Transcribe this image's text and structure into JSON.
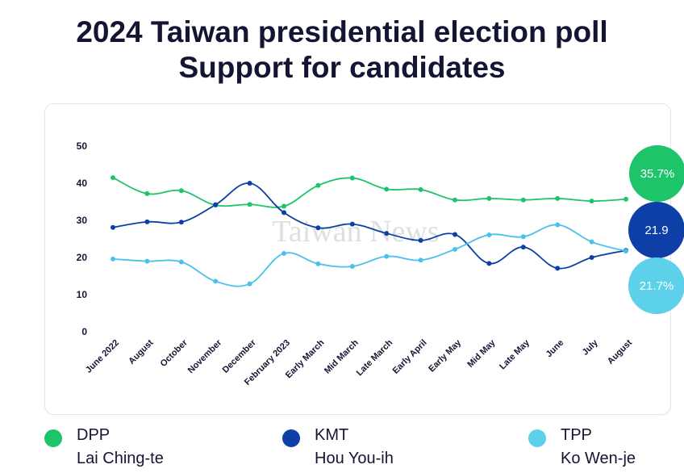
{
  "title_line1": "2024 Taiwan presidential election poll",
  "title_line2": "Support for candidates",
  "watermark": "Taiwan News",
  "colors": {
    "dpp": "#1ec46a",
    "kmt": "#0d3fa6",
    "tpp": "#5dd0ea",
    "tpp_line": "#49c2eb"
  },
  "chart_data": {
    "type": "line",
    "categories": [
      "June 2022",
      "August",
      "October",
      "November",
      "December",
      "February 2023",
      "Early March",
      "Mid March",
      "Late March",
      "Early April",
      "Early May",
      "Mid May",
      "Late May",
      "June",
      "July",
      "August"
    ],
    "ylim": [
      0,
      50
    ],
    "yticks": [
      "0",
      "10",
      "20",
      "30",
      "40",
      "50"
    ],
    "series": [
      {
        "name": "DPP",
        "values": [
          41.5,
          37.2,
          38.0,
          34.1,
          34.3,
          33.8,
          39.4,
          41.4,
          38.4,
          38.3,
          35.5,
          35.9,
          35.5,
          35.9,
          35.2,
          35.7
        ]
      },
      {
        "name": "KMT",
        "values": [
          28.1,
          29.6,
          29.5,
          34.2,
          40.0,
          32.1,
          28.0,
          29.0,
          26.5,
          24.6,
          26.2,
          18.4,
          22.8,
          17.1,
          20.0,
          21.9
        ]
      },
      {
        "name": "TPP",
        "values": [
          19.6,
          19.0,
          18.8,
          13.6,
          12.9,
          21.1,
          18.3,
          17.6,
          20.3,
          19.3,
          22.2,
          26.1,
          25.6,
          28.8,
          24.2,
          21.7
        ]
      }
    ]
  },
  "bubbles": {
    "dpp": "35.7%",
    "kmt": "21.9",
    "tpp": "21.7%"
  },
  "legend": [
    {
      "party": "DPP",
      "candidate": "Lai Ching-te"
    },
    {
      "party": "KMT",
      "candidate": "Hou You-ih"
    },
    {
      "party": "TPP",
      "candidate": "Ko Wen-je"
    }
  ]
}
